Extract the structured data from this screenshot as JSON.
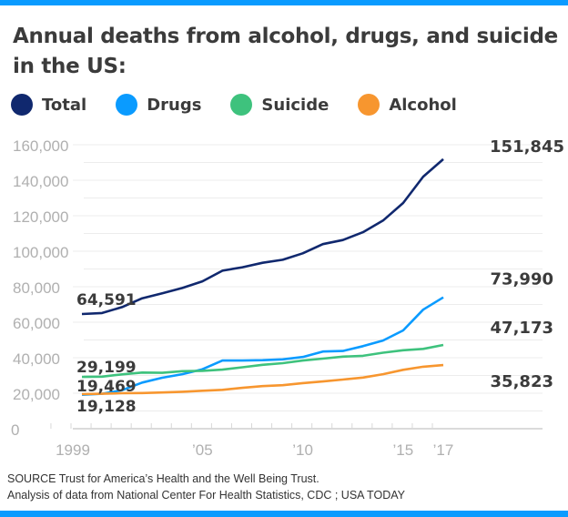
{
  "title": "Annual deaths from alcohol, drugs, and suicide in the US:",
  "source": [
    "SOURCE Trust for America’s Health and the Well Being Trust.",
    "Analysis of data from National Center For Health Statistics, CDC ; USA TODAY"
  ],
  "colors": {
    "accent_bar": "#0a9bff",
    "grid": "#e6e6e6",
    "axis_text": "#aaaaaa"
  },
  "chart_data": {
    "type": "line",
    "title": "Annual deaths from alcohol, drugs, and suicide in the US:",
    "x": [
      1999,
      2000,
      2001,
      2002,
      2003,
      2004,
      2005,
      2006,
      2007,
      2008,
      2009,
      2010,
      2011,
      2012,
      2013,
      2014,
      2015,
      2016,
      2017
    ],
    "xticks": [
      {
        "value": 1999,
        "label": "1999"
      },
      {
        "value": 2005,
        "label": "’05"
      },
      {
        "value": 2010,
        "label": "’10"
      },
      {
        "value": 2015,
        "label": "’15"
      },
      {
        "value": 2017,
        "label": "’17"
      }
    ],
    "yticks": [
      {
        "value": 0,
        "label": "0"
      },
      {
        "value": 20000,
        "label": "20,000"
      },
      {
        "value": 40000,
        "label": "40,000"
      },
      {
        "value": 60000,
        "label": "60,000"
      },
      {
        "value": 80000,
        "label": "80,000"
      },
      {
        "value": 100000,
        "label": "100,000"
      },
      {
        "value": 120000,
        "label": "120,000"
      },
      {
        "value": 140000,
        "label": "140,000"
      },
      {
        "value": 160000,
        "label": "160,000"
      }
    ],
    "ylim": [
      0,
      160000
    ],
    "grid": true,
    "legend": "top",
    "series": [
      {
        "name": "Total",
        "color": "#10286e",
        "start_label": "64,591",
        "end_label": "151,845",
        "values": [
          64591,
          65200,
          68500,
          73500,
          76300,
          79300,
          83000,
          89000,
          91000,
          93500,
          95200,
          98800,
          104000,
          106300,
          110700,
          117300,
          127200,
          142000,
          151845
        ]
      },
      {
        "name": "Drugs",
        "color": "#0a9bff",
        "start_label": "19,128",
        "end_label": "73,990",
        "values": [
          19128,
          19700,
          21700,
          26000,
          28700,
          30700,
          33500,
          38400,
          38400,
          38600,
          39100,
          40400,
          43500,
          43800,
          46500,
          49700,
          55400,
          67100,
          73990
        ]
      },
      {
        "name": "Suicide",
        "color": "#3ec27d",
        "start_label": "29,199",
        "end_label": "47,173",
        "values": [
          29199,
          29350,
          30600,
          31650,
          31500,
          32400,
          32600,
          33300,
          34600,
          36000,
          36900,
          38400,
          39500,
          40600,
          41100,
          42800,
          44200,
          45000,
          47173
        ]
      },
      {
        "name": "Alcohol",
        "color": "#f7962f",
        "start_label": "19,469",
        "end_label": "35,823",
        "values": [
          19469,
          19700,
          20000,
          20100,
          20400,
          20800,
          21400,
          21900,
          23000,
          24000,
          24500,
          25700,
          26600,
          27700,
          28800,
          30700,
          33200,
          34900,
          35823
        ]
      }
    ]
  }
}
